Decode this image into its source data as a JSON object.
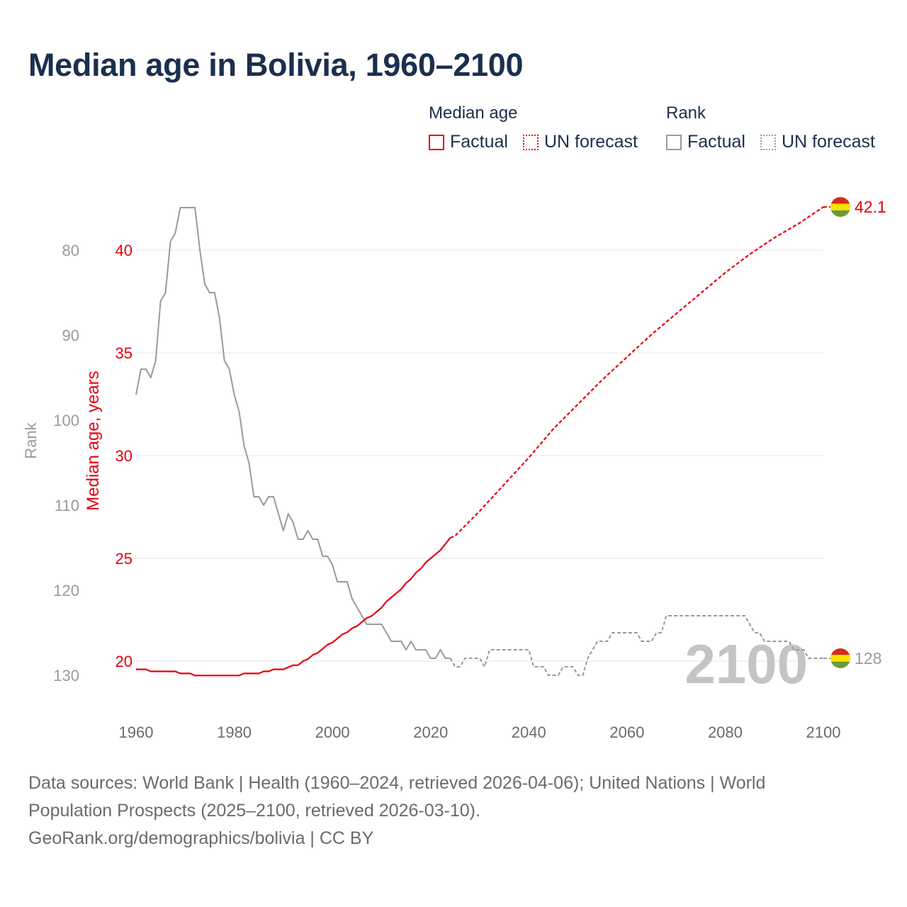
{
  "title": "Median age in Bolivia, 1960–2100",
  "legend": {
    "median_title": "Median age",
    "rank_title": "Rank",
    "factual": "Factual",
    "forecast": "UN forecast"
  },
  "footer": {
    "line1": "Data sources: World Bank | Health (1960–2024, retrieved 2026-04-06); United Nations | World",
    "line2": "Population Prospects (2025–2100, retrieved 2026-03-10).",
    "line3": "GeoRank.org/demographics/bolivia | CC BY"
  },
  "colors": {
    "median": "#e8000e",
    "rank": "#9a9a9a",
    "title": "#1b2f4e",
    "year_watermark": "#c4c4c4",
    "flag_red": "#d52b1e",
    "flag_yellow": "#f9e300",
    "flag_green": "#6a9a3a"
  },
  "chart_data": {
    "type": "line",
    "x_label": "",
    "y_left_outer_label": "Rank",
    "y_left_inner_label": "Median age, years",
    "x_range": [
      1960,
      2100
    ],
    "x_ticks": [
      "1960",
      "1980",
      "2000",
      "2020",
      "2040",
      "2060",
      "2080",
      "2100"
    ],
    "median_range": [
      20,
      40
    ],
    "median_ticks": [
      "20",
      "25",
      "30",
      "35",
      "40"
    ],
    "rank_range": [
      80,
      130
    ],
    "rank_ticks": [
      "80",
      "90",
      "100",
      "110",
      "120",
      "130"
    ],
    "year_watermark": "2100",
    "end_labels": {
      "median": "42.1",
      "rank": "128"
    },
    "factual_end_year": 2024,
    "series": [
      {
        "name": "Median age",
        "factual": [
          [
            1960,
            19.6
          ],
          [
            1962,
            19.6
          ],
          [
            1963,
            19.5
          ],
          [
            1968,
            19.5
          ],
          [
            1969,
            19.4
          ],
          [
            1971,
            19.4
          ],
          [
            1972,
            19.3
          ],
          [
            1980,
            19.3
          ],
          [
            1981,
            19.3
          ],
          [
            1982,
            19.4
          ],
          [
            1985,
            19.4
          ],
          [
            1986,
            19.5
          ],
          [
            1987,
            19.5
          ],
          [
            1988,
            19.6
          ],
          [
            1990,
            19.6
          ],
          [
            1991,
            19.7
          ],
          [
            1992,
            19.8
          ],
          [
            1993,
            19.8
          ],
          [
            1994,
            20.0
          ],
          [
            1995,
            20.1
          ],
          [
            1996,
            20.3
          ],
          [
            1997,
            20.4
          ],
          [
            1998,
            20.6
          ],
          [
            1999,
            20.8
          ],
          [
            2000,
            20.9
          ],
          [
            2001,
            21.1
          ],
          [
            2002,
            21.3
          ],
          [
            2003,
            21.4
          ],
          [
            2004,
            21.6
          ],
          [
            2005,
            21.7
          ],
          [
            2006,
            21.9
          ],
          [
            2007,
            22.1
          ],
          [
            2008,
            22.2
          ],
          [
            2009,
            22.4
          ],
          [
            2010,
            22.6
          ],
          [
            2011,
            22.9
          ],
          [
            2012,
            23.1
          ],
          [
            2013,
            23.3
          ],
          [
            2014,
            23.5
          ],
          [
            2015,
            23.8
          ],
          [
            2016,
            24.0
          ],
          [
            2017,
            24.3
          ],
          [
            2018,
            24.5
          ],
          [
            2019,
            24.8
          ],
          [
            2020,
            25.0
          ],
          [
            2021,
            25.2
          ],
          [
            2022,
            25.4
          ],
          [
            2023,
            25.7
          ],
          [
            2024,
            26.0
          ]
        ],
        "forecast": [
          [
            2024,
            26.0
          ],
          [
            2025,
            26.1
          ],
          [
            2030,
            27.3
          ],
          [
            2035,
            28.6
          ],
          [
            2040,
            29.9
          ],
          [
            2045,
            31.3
          ],
          [
            2050,
            32.5
          ],
          [
            2055,
            33.7
          ],
          [
            2060,
            34.8
          ],
          [
            2065,
            35.9
          ],
          [
            2070,
            36.9
          ],
          [
            2075,
            37.9
          ],
          [
            2080,
            38.9
          ],
          [
            2085,
            39.8
          ],
          [
            2090,
            40.6
          ],
          [
            2095,
            41.3
          ],
          [
            2100,
            42.1
          ]
        ]
      },
      {
        "name": "Rank",
        "factual": [
          [
            1960,
            97
          ],
          [
            1961,
            94
          ],
          [
            1962,
            94
          ],
          [
            1963,
            95
          ],
          [
            1964,
            93
          ],
          [
            1965,
            86
          ],
          [
            1966,
            85
          ],
          [
            1967,
            79
          ],
          [
            1968,
            78
          ],
          [
            1969,
            75
          ],
          [
            1970,
            75
          ],
          [
            1971,
            75
          ],
          [
            1972,
            75
          ],
          [
            1973,
            80
          ],
          [
            1974,
            84
          ],
          [
            1975,
            85
          ],
          [
            1976,
            85
          ],
          [
            1977,
            88
          ],
          [
            1978,
            93
          ],
          [
            1979,
            94
          ],
          [
            1980,
            97
          ],
          [
            1981,
            99
          ],
          [
            1982,
            103
          ],
          [
            1983,
            105
          ],
          [
            1984,
            109
          ],
          [
            1985,
            109
          ],
          [
            1986,
            110
          ],
          [
            1987,
            109
          ],
          [
            1988,
            109
          ],
          [
            1989,
            111
          ],
          [
            1990,
            113
          ],
          [
            1991,
            111
          ],
          [
            1992,
            112
          ],
          [
            1993,
            114
          ],
          [
            1994,
            114
          ],
          [
            1995,
            113
          ],
          [
            1996,
            114
          ],
          [
            1997,
            114
          ],
          [
            1998,
            116
          ],
          [
            1999,
            116
          ],
          [
            2000,
            117
          ],
          [
            2001,
            119
          ],
          [
            2002,
            119
          ],
          [
            2003,
            119
          ],
          [
            2004,
            121
          ],
          [
            2005,
            122
          ],
          [
            2006,
            123
          ],
          [
            2007,
            124
          ],
          [
            2008,
            124
          ],
          [
            2009,
            124
          ],
          [
            2010,
            124
          ],
          [
            2011,
            125
          ],
          [
            2012,
            126
          ],
          [
            2013,
            126
          ],
          [
            2014,
            126
          ],
          [
            2015,
            127
          ],
          [
            2016,
            126
          ],
          [
            2017,
            127
          ],
          [
            2018,
            127
          ],
          [
            2019,
            127
          ],
          [
            2020,
            128
          ],
          [
            2021,
            128
          ],
          [
            2022,
            127
          ],
          [
            2023,
            128
          ],
          [
            2024,
            128
          ]
        ],
        "forecast": [
          [
            2024,
            128
          ],
          [
            2025,
            129
          ],
          [
            2026,
            129
          ],
          [
            2027,
            128
          ],
          [
            2030,
            128
          ],
          [
            2031,
            129
          ],
          [
            2032,
            127
          ],
          [
            2040,
            127
          ],
          [
            2041,
            129
          ],
          [
            2043,
            129
          ],
          [
            2044,
            130
          ],
          [
            2046,
            130
          ],
          [
            2047,
            129
          ],
          [
            2049,
            129
          ],
          [
            2050,
            130
          ],
          [
            2051,
            130
          ],
          [
            2052,
            128
          ],
          [
            2054,
            126
          ],
          [
            2056,
            126
          ],
          [
            2057,
            125
          ],
          [
            2062,
            125
          ],
          [
            2063,
            126
          ],
          [
            2065,
            126
          ],
          [
            2066,
            125
          ],
          [
            2067,
            125
          ],
          [
            2068,
            123
          ],
          [
            2084,
            123
          ],
          [
            2086,
            125
          ],
          [
            2087,
            125
          ],
          [
            2088,
            126
          ],
          [
            2093,
            126
          ],
          [
            2094,
            127
          ],
          [
            2096,
            127
          ],
          [
            2097,
            128
          ],
          [
            2100,
            128
          ]
        ]
      }
    ]
  }
}
